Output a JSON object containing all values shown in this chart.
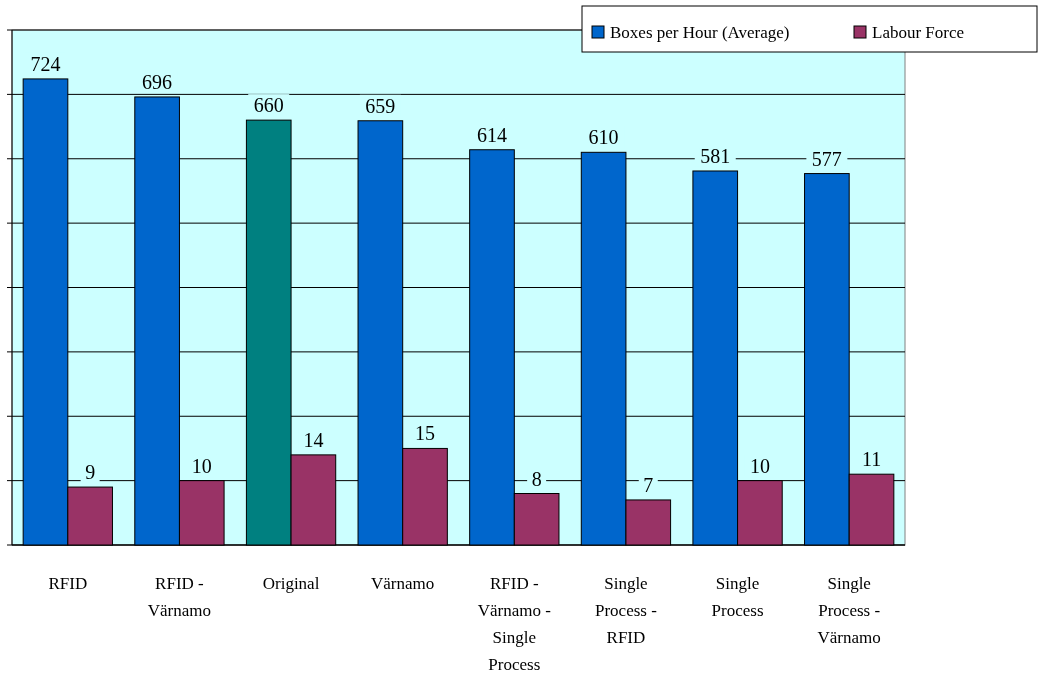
{
  "chart_data": {
    "type": "bar",
    "categories": [
      "RFID",
      "RFID - Värnamo",
      "Original",
      "Värnamo",
      "RFID - Värnamo - Single Process",
      "Single Process - RFID",
      "Single Process",
      "Single Process - Värnamo"
    ],
    "series": [
      {
        "name": "Boxes per Hour (Average)",
        "color": "#0066cc",
        "colors": [
          "#0066cc",
          "#0066cc",
          "#008080",
          "#0066cc",
          "#0066cc",
          "#0066cc",
          "#0066cc",
          "#0066cc"
        ],
        "values": [
          724,
          696,
          660,
          659,
          614,
          610,
          581,
          577
        ]
      },
      {
        "name": "Labour Force",
        "color": "#993366",
        "axis": "y2",
        "values": [
          9,
          10,
          14,
          15,
          8,
          7,
          10,
          11
        ]
      }
    ],
    "ylim": [
      0,
      800
    ],
    "yticks": [
      {
        "value": 0,
        "label": null
      },
      {
        "value": 100,
        "label": null
      },
      {
        "value": 200,
        "label": null
      },
      {
        "value": 300,
        "label": null
      },
      {
        "value": 400,
        "label": null
      },
      {
        "value": 500,
        "label": null
      },
      {
        "value": 600,
        "label": null
      },
      {
        "value": 700,
        "label": null
      },
      {
        "value": 800,
        "label": null
      }
    ],
    "y2lim": [
      0,
      80
    ],
    "tick_labels": "x",
    "grid": "y",
    "legend": "top right",
    "data_labels": true
  }
}
